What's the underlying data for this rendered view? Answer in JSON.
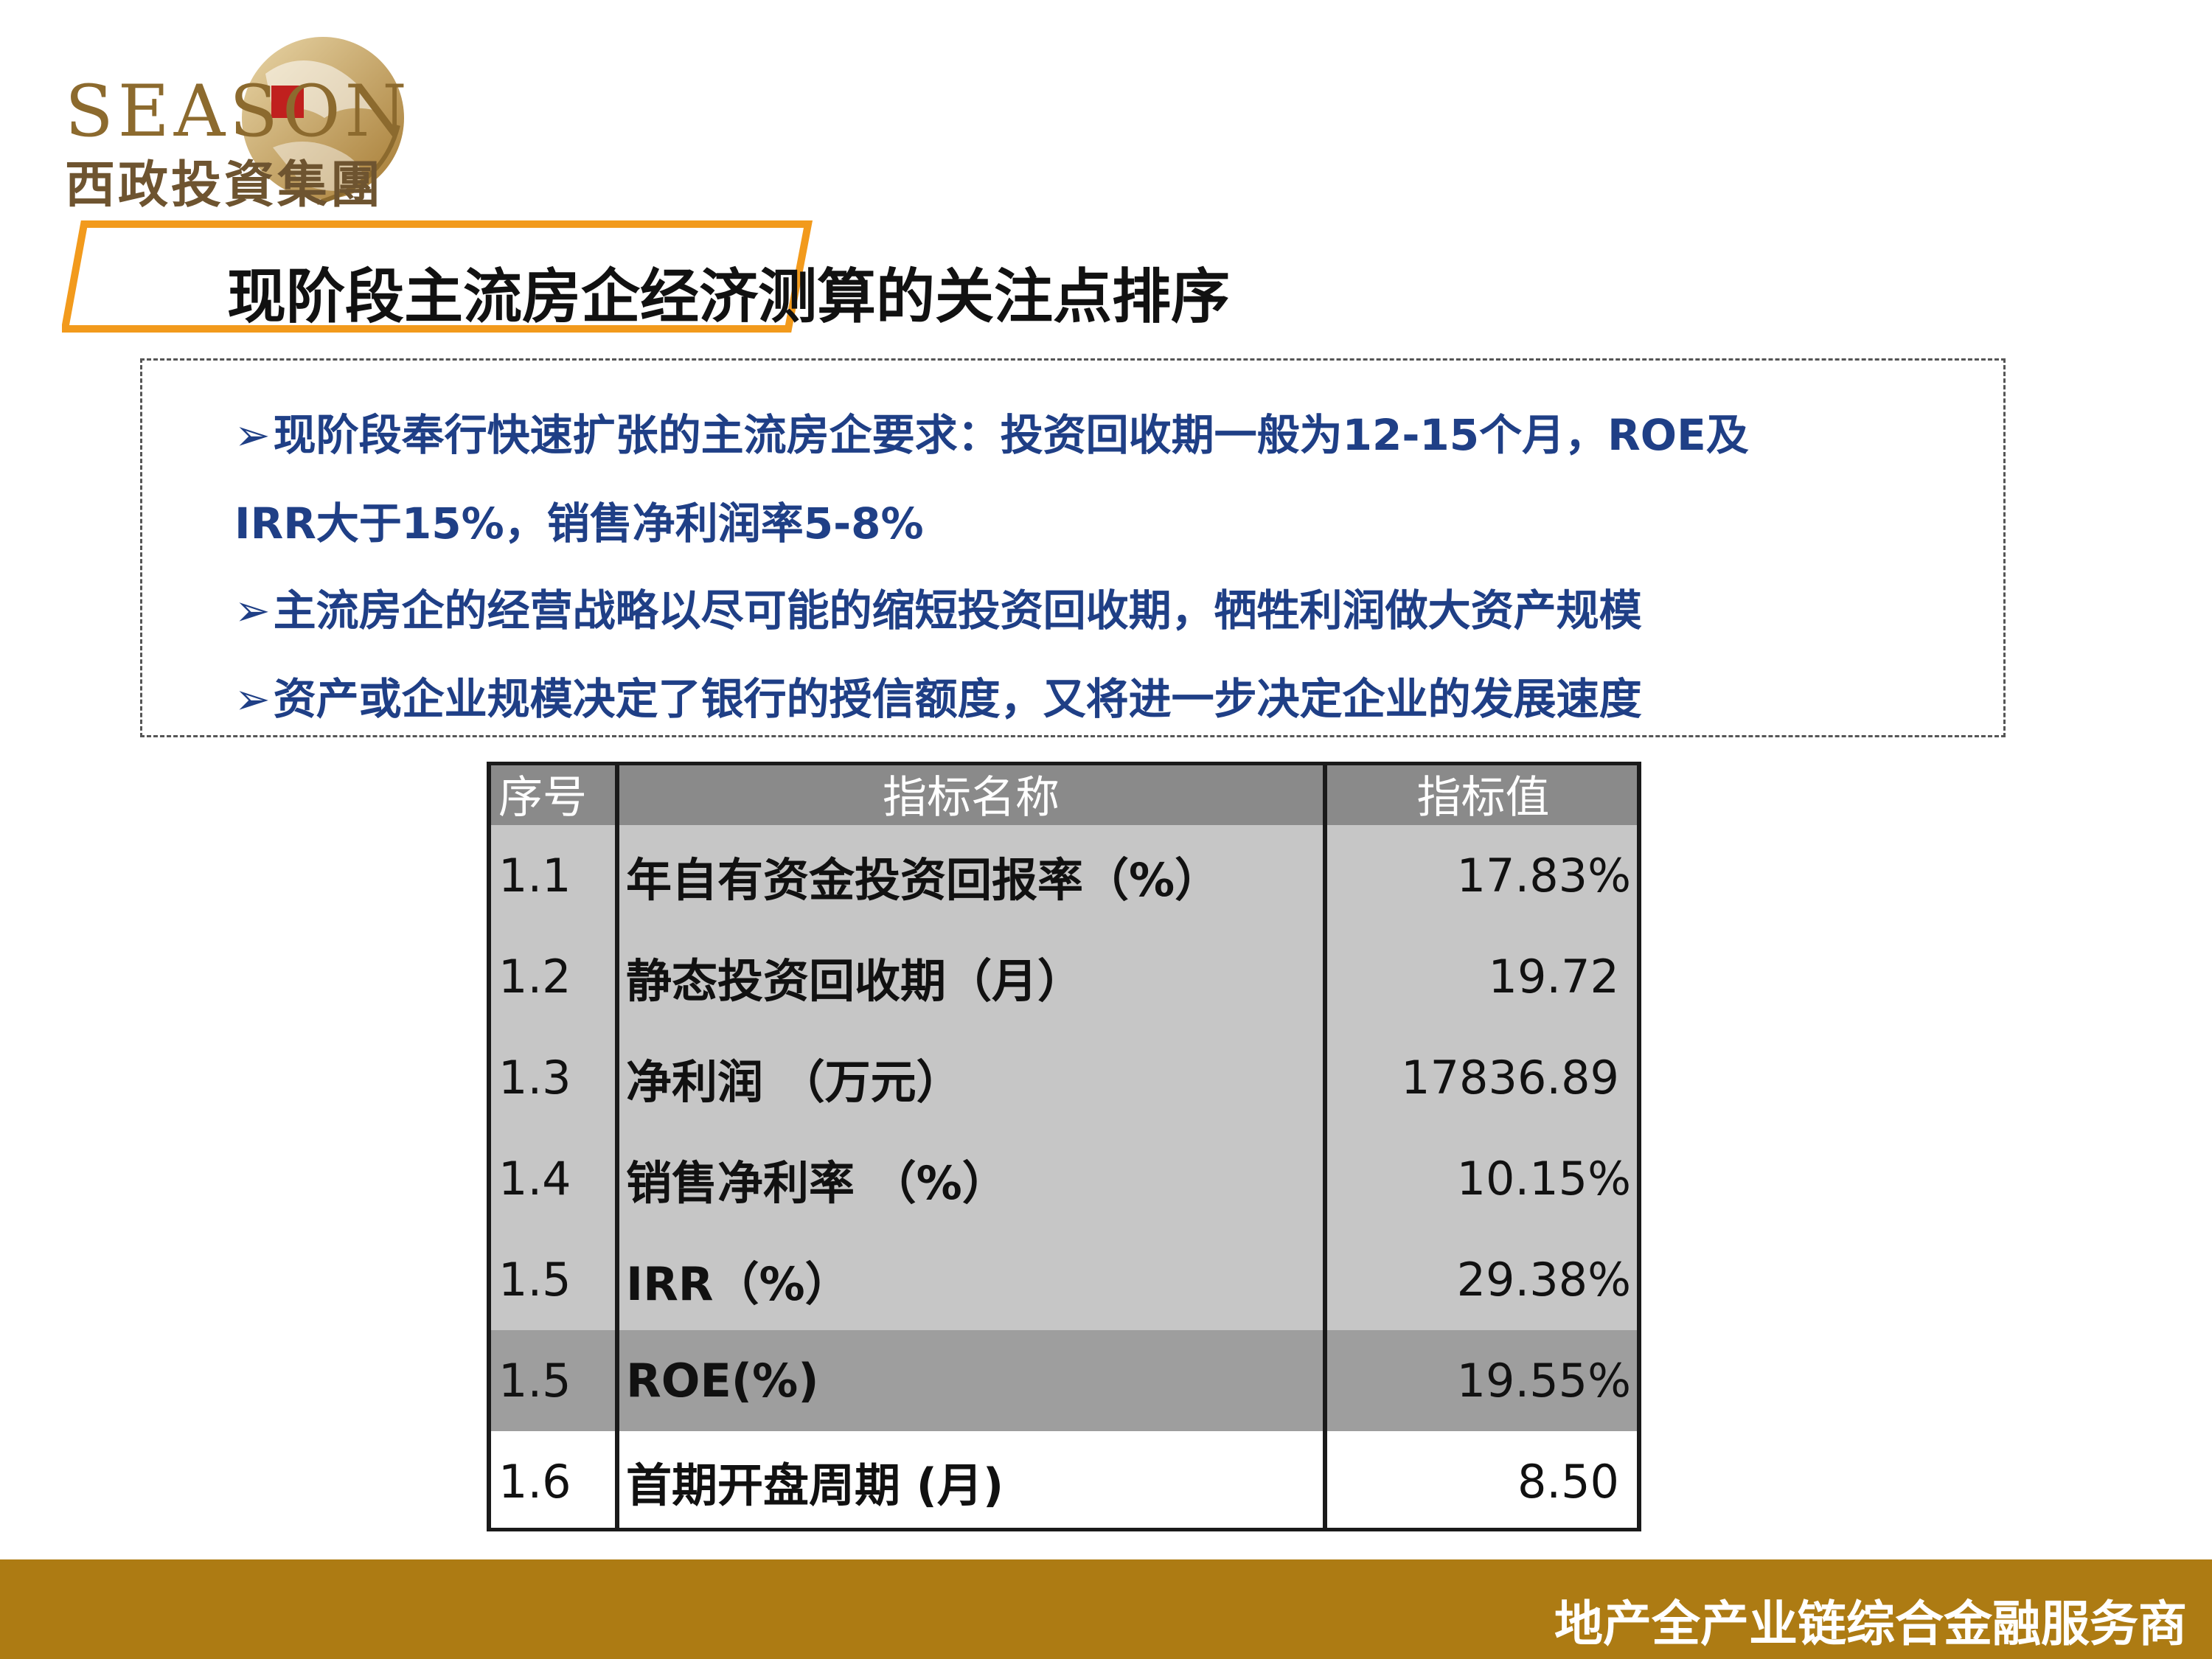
{
  "logo": {
    "english": "SEASON",
    "chinese": "西政投資集團"
  },
  "title": "现阶段主流房企经济测算的关注点排序",
  "bullets": [
    {
      "arrow": "➢",
      "text": "现阶段奉行快速扩张的主流房企要求：投资回收期一般为12-15个月，ROE及"
    },
    {
      "arrow": "",
      "text": "IRR大于15%，销售净利润率5-8%"
    },
    {
      "arrow": "➢",
      "text": "主流房企的经营战略以尽可能的缩短投资回收期，牺牲利润做大资产规模"
    },
    {
      "arrow": "➢",
      "text": "资产或企业规模决定了银行的授信额度，又将进一步决定企业的发展速度"
    }
  ],
  "table": {
    "headers": [
      "序号",
      "指标名称",
      "指标值"
    ],
    "rows": [
      {
        "no": "1.1",
        "name": " 年自有资金投资回报率（%）",
        "value": "17.83%",
        "shade": "light"
      },
      {
        "no": "1.2",
        "name": "静态投资回收期（月）",
        "value": "19.72",
        "shade": "light"
      },
      {
        "no": "1.3",
        "name": "净利润 （万元）",
        "value": "17836.89",
        "shade": "light"
      },
      {
        "no": "1.4",
        "name": "销售净利率 （%）",
        "value": "10.15%",
        "shade": "light"
      },
      {
        "no": "1.5",
        "name": "IRR（%）",
        "value": "29.38%",
        "shade": "light"
      },
      {
        "no": "1.5",
        "name": "ROE(%)",
        "value": "19.55%",
        "shade": "dark"
      },
      {
        "no": "1.6",
        "name": "首期开盘周期 (月)",
        "value": "8.50",
        "shade": "white"
      }
    ]
  },
  "footer": {
    "slogan": "地产全产业链综合金融服务商"
  },
  "colors": {
    "brand_gold": "#ad7b13",
    "title_border": "#f29a1c",
    "bullet_text": "#1f3f86"
  }
}
